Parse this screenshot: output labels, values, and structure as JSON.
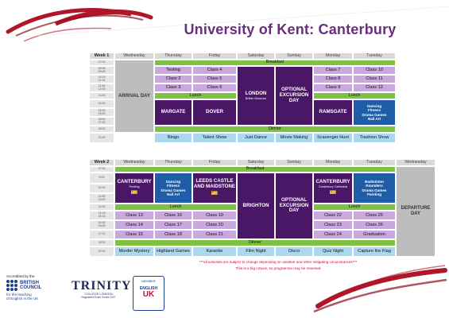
{
  "title": "University of Kent: Canterbury",
  "week1": {
    "label": "Week 1",
    "days": [
      "Wednesday",
      "Thursday",
      "Friday",
      "Saturday",
      "Sunday",
      "Monday",
      "Tuesday"
    ],
    "times": [
      "07:30",
      "08:45\n09:45",
      "10:15\n11:15",
      "11:45\n12:45",
      "13:00",
      "14:00",
      "15:00\n16:00",
      "16:00\n17:00",
      "18:30",
      "20:00"
    ],
    "breakfast": "Breakfast",
    "lunch": "Lunch",
    "dinner": "Dinner",
    "arrival": "ARRIVAL DAY",
    "thu": [
      "Testing",
      "Class 2",
      "Class 3"
    ],
    "fri": [
      "Class 4",
      "Class 5",
      "Class 6"
    ],
    "mon": [
      "Class 7",
      "Class 8",
      "Class 9"
    ],
    "tue": [
      "Class 10",
      "Class 11",
      "Class 12"
    ],
    "sat_trip": "LONDON",
    "sat_trip_sub": "British Museum",
    "sun_trip": "OPTIONAL EXCURSION DAY",
    "thu_pm": "MARGATE",
    "fri_pm": "DOVER",
    "mon_pm": "RAMSGATE",
    "tue_pm": "Dancing\nFitness\nDrama Games\nNail Art",
    "evening": [
      "Bingo",
      "Talent Show",
      "Just Dance",
      "Movie Making",
      "Scavenger Hunt",
      "Trashion Show"
    ]
  },
  "week2": {
    "label": "Week 2",
    "days": [
      "Wednesday",
      "Thursday",
      "Friday",
      "Saturday",
      "Sunday",
      "Monday",
      "Tuesday",
      "Wednesday"
    ],
    "times": [
      "07:30",
      "9:00",
      "10:00",
      "11:00\n12:00",
      "13:00",
      "14:15\n15:15",
      "15:30\n16:30",
      "17:10",
      "18:30",
      "20:00"
    ],
    "breakfast": "Breakfast",
    "lunch": "Lunch",
    "dinner": "Dinner",
    "wed_am": "CANTERBURY",
    "wed_am_sub": "Punting",
    "thu_am": "Dancing\nFitness\nDrama Games\nNail Art",
    "fri_am": "LEEDS CASTLE AND MAIDSTONE",
    "sat_trip": "BRIGHTON",
    "sun_trip": "OPTIONAL EXCURSION DAY",
    "mon_am": "CANTERBURY",
    "mon_am_sub": "Canterbury Cathedral",
    "tue_am": "Badminton\nRounders\nDrama Games\nPainting",
    "departure": "DEPARTURE DAY",
    "wed_pm": [
      "Class 13",
      "Class 14",
      "Class 15"
    ],
    "thu_pm": [
      "Class 16",
      "Class 17",
      "Class 18"
    ],
    "fri_pm": [
      "Class 19",
      "Class 20",
      "Class 21"
    ],
    "mon_pm": [
      "Class 22",
      "Class 23",
      "Class 24"
    ],
    "tue_pm": [
      "Class 25",
      "Class 26",
      "Graduation"
    ],
    "evening": [
      "Murder Mystery",
      "Highland Games",
      "Karaoke",
      "Film Night",
      "Disco",
      "Quiz Night",
      "Capture the Flag"
    ]
  },
  "notes": {
    "line1": "***all activities are subject to change depending on weather and other mitigating circumstances***",
    "line2": "This is a big cmpus, so programme may be reversed"
  },
  "logos": {
    "bc_accredited": "Accredited by the",
    "bc_name": "BRITISH\nCOUNCIL",
    "bc_caption": "for the teaching\nof English in the UK",
    "trinity_name": "TRINITY",
    "trinity_sub1": "COLLEGE LONDON",
    "trinity_sub2": "Registered Exam Centre 2207",
    "eu_member": "MEMBER",
    "eu_english": "ENGLISH",
    "eu_uk": "UK"
  },
  "colors": {
    "purple": "#4a1666",
    "lilac": "#c9a7df",
    "green": "#7ec242",
    "blue": "#1f5da8",
    "light": "#a9d8ef",
    "grey": "#bdbdbd",
    "title": "#6b2d7e",
    "brush": "#b0162a"
  }
}
